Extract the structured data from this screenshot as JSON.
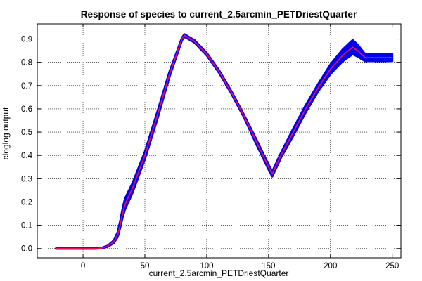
{
  "chart_data": {
    "type": "line",
    "title": "Response of species to current_2.5arcmin_PETDriestQuarter",
    "xlabel": "current_2.5arcmin_PETDriestQuarter",
    "ylabel": "cloglog output",
    "xlim": [
      -37,
      257
    ],
    "ylim": [
      -0.04,
      0.965
    ],
    "x_ticks": [
      0,
      50,
      100,
      150,
      200,
      250
    ],
    "y_ticks": [
      0.0,
      0.1,
      0.2,
      0.3,
      0.4,
      0.5,
      0.6,
      0.7,
      0.8,
      0.9
    ],
    "grid": true,
    "colors": {
      "mean": "#e0105a",
      "band": "#0000ee"
    },
    "series": [
      {
        "role": "mean",
        "x": [
          -22,
          -10,
          0,
          10,
          15,
          20,
          25,
          28,
          30,
          32,
          34,
          40,
          50,
          60,
          70,
          80,
          82,
          90,
          100,
          110,
          120,
          130,
          140,
          150,
          153,
          160,
          170,
          180,
          190,
          200,
          210,
          218,
          222,
          228,
          240,
          250
        ],
        "y": [
          0.0,
          0.0,
          0.0,
          0.0,
          0.002,
          0.01,
          0.03,
          0.06,
          0.1,
          0.15,
          0.19,
          0.26,
          0.4,
          0.57,
          0.75,
          0.9,
          0.915,
          0.89,
          0.835,
          0.76,
          0.67,
          0.57,
          0.46,
          0.35,
          0.32,
          0.4,
          0.5,
          0.6,
          0.69,
          0.77,
          0.83,
          0.865,
          0.85,
          0.82,
          0.82,
          0.82
        ]
      },
      {
        "role": "band-upper",
        "x": [
          -22,
          -10,
          0,
          10,
          15,
          20,
          25,
          28,
          30,
          32,
          34,
          40,
          50,
          60,
          70,
          80,
          82,
          90,
          100,
          110,
          120,
          130,
          140,
          150,
          153,
          160,
          170,
          180,
          190,
          200,
          210,
          218,
          222,
          228,
          240,
          250
        ],
        "y": [
          0.0,
          0.0,
          0.0,
          0.0,
          0.003,
          0.012,
          0.035,
          0.07,
          0.115,
          0.17,
          0.215,
          0.28,
          0.415,
          0.585,
          0.76,
          0.905,
          0.92,
          0.895,
          0.84,
          0.765,
          0.675,
          0.575,
          0.47,
          0.36,
          0.33,
          0.41,
          0.515,
          0.615,
          0.705,
          0.79,
          0.855,
          0.895,
          0.875,
          0.835,
          0.835,
          0.835
        ]
      },
      {
        "role": "band-lower",
        "x": [
          -22,
          -10,
          0,
          10,
          15,
          20,
          25,
          28,
          30,
          32,
          34,
          40,
          50,
          60,
          70,
          80,
          82,
          90,
          100,
          110,
          120,
          130,
          140,
          150,
          153,
          160,
          170,
          180,
          190,
          200,
          210,
          218,
          222,
          228,
          240,
          250
        ],
        "y": [
          0.0,
          0.0,
          0.0,
          0.0,
          0.001,
          0.008,
          0.025,
          0.05,
          0.09,
          0.135,
          0.17,
          0.24,
          0.385,
          0.555,
          0.74,
          0.895,
          0.91,
          0.885,
          0.83,
          0.755,
          0.665,
          0.565,
          0.45,
          0.34,
          0.31,
          0.39,
          0.485,
          0.585,
          0.675,
          0.75,
          0.805,
          0.835,
          0.825,
          0.805,
          0.805,
          0.805
        ]
      }
    ]
  }
}
